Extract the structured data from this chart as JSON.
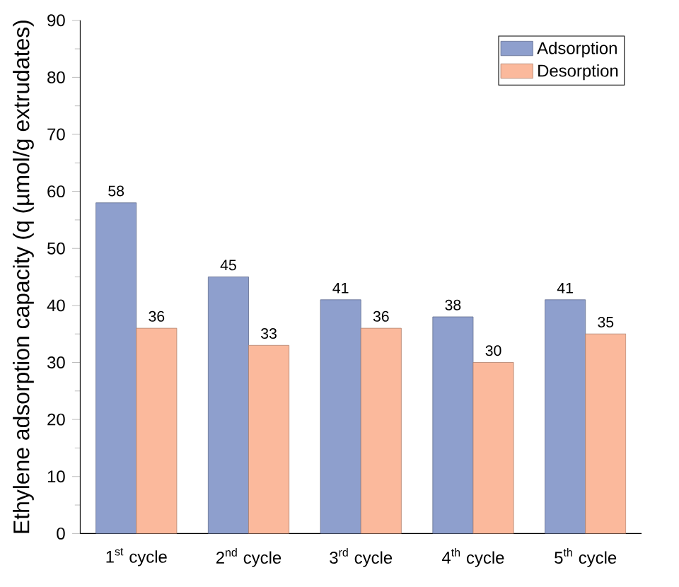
{
  "chart_data": {
    "type": "bar",
    "ylabel": "Ethylene adsorption capacity (q (µmol/g extrudates)",
    "categories": [
      "1$^{st}$ cycle",
      "2$^{nd}$ cycle",
      "3$^{rd}$ cycle",
      "4$^{th}$ cycle",
      "5$^{th}$ cycle"
    ],
    "series": [
      {
        "name": "Adsorption",
        "color": "#8e9fcd",
        "values": [
          58,
          45,
          41,
          38,
          41
        ]
      },
      {
        "name": "Desorption",
        "color": "#fbb99c",
        "values": [
          36,
          33,
          36,
          30,
          35
        ]
      }
    ],
    "ylim": [
      0,
      90
    ],
    "yticks": [
      0,
      10,
      20,
      30,
      40,
      50,
      60,
      70,
      80,
      90
    ],
    "data_labels": true,
    "legend": "top right",
    "grid": false
  }
}
